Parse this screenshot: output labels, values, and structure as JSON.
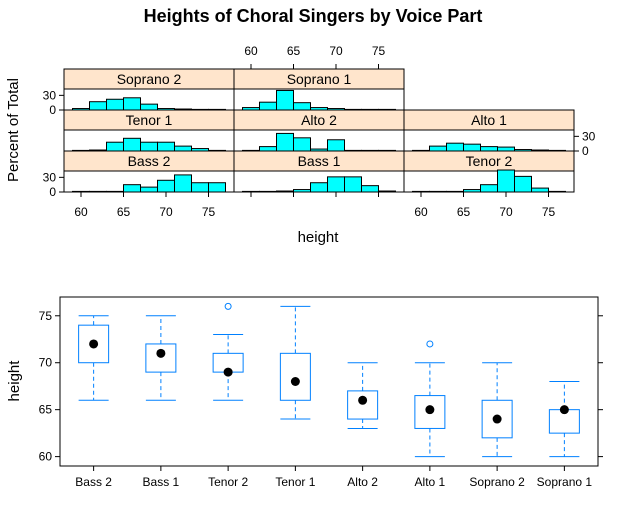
{
  "title": "Heights of Choral Singers by Voice Part",
  "colors": {
    "strip_bg": "#ffe5cc",
    "hist_fill": "#00ffff",
    "box_color": "#0080ff",
    "median_dot": "#000000",
    "axis": "#000000"
  },
  "chart_data": [
    {
      "type": "bar",
      "title": "Heights of Choral Singers by Voice Part",
      "xlabel": "height",
      "ylabel": "Percent of Total",
      "xlim": [
        58,
        78
      ],
      "ylim": [
        0,
        43
      ],
      "x_ticks": [
        "60",
        "65",
        "70",
        "75"
      ],
      "y_ticks": [
        "0",
        "30"
      ],
      "bin_edges": [
        59,
        61,
        63,
        65,
        67,
        69,
        71,
        73,
        75,
        77
      ],
      "panels": [
        {
          "name": "Soprano 2",
          "values": [
            3,
            17,
            22,
            25,
            12,
            3,
            2,
            0,
            0
          ]
        },
        {
          "name": "Soprano 1",
          "values": [
            5,
            16,
            40,
            15,
            5,
            3,
            0,
            0,
            0
          ]
        },
        {
          "name": "Tenor 1",
          "values": [
            0,
            2,
            18,
            26,
            18,
            18,
            10,
            5,
            0
          ]
        },
        {
          "name": "Alto 2",
          "values": [
            0,
            9,
            36,
            27,
            4,
            23,
            0,
            0,
            0
          ]
        },
        {
          "name": "Alto 1",
          "values": [
            0,
            10,
            16,
            14,
            9,
            8,
            3,
            2,
            0
          ]
        },
        {
          "name": "Bass 2",
          "values": [
            0,
            0,
            0,
            15,
            10,
            24,
            35,
            19,
            19
          ]
        },
        {
          "name": "Bass 1",
          "values": [
            0,
            0,
            2,
            5,
            19,
            31,
            31,
            13,
            2
          ]
        },
        {
          "name": "Tenor 2",
          "values": [
            0,
            0,
            0,
            5,
            15,
            45,
            32,
            8,
            0
          ]
        }
      ]
    },
    {
      "type": "box",
      "xlabel": "",
      "ylabel": "height",
      "ylim": [
        59,
        77
      ],
      "y_ticks": [
        "60",
        "65",
        "70",
        "75"
      ],
      "categories": [
        "Bass 2",
        "Bass 1",
        "Tenor 2",
        "Tenor 1",
        "Alto 2",
        "Alto 1",
        "Soprano 2",
        "Soprano 1"
      ],
      "boxes": [
        {
          "name": "Bass 2",
          "min": 66,
          "q1": 70,
          "median": 72,
          "q3": 74,
          "max": 75,
          "outliers": []
        },
        {
          "name": "Bass 1",
          "min": 66,
          "q1": 69,
          "median": 71,
          "q3": 72,
          "max": 75,
          "outliers": []
        },
        {
          "name": "Tenor 2",
          "min": 66,
          "q1": 69,
          "median": 69,
          "q3": 71,
          "max": 73,
          "outliers": [
            76
          ]
        },
        {
          "name": "Tenor 1",
          "min": 64,
          "q1": 66,
          "median": 68,
          "q3": 71,
          "max": 76,
          "outliers": []
        },
        {
          "name": "Alto 2",
          "min": 63,
          "q1": 64,
          "median": 66,
          "q3": 67,
          "max": 70,
          "outliers": []
        },
        {
          "name": "Alto 1",
          "min": 60,
          "q1": 63,
          "median": 65,
          "q3": 66.5,
          "max": 70,
          "outliers": [
            72
          ]
        },
        {
          "name": "Soprano 2",
          "min": 60,
          "q1": 62,
          "median": 64,
          "q3": 66,
          "max": 70,
          "outliers": []
        },
        {
          "name": "Soprano 1",
          "min": 60,
          "q1": 62.5,
          "median": 65,
          "q3": 65,
          "max": 68,
          "outliers": []
        }
      ]
    }
  ]
}
